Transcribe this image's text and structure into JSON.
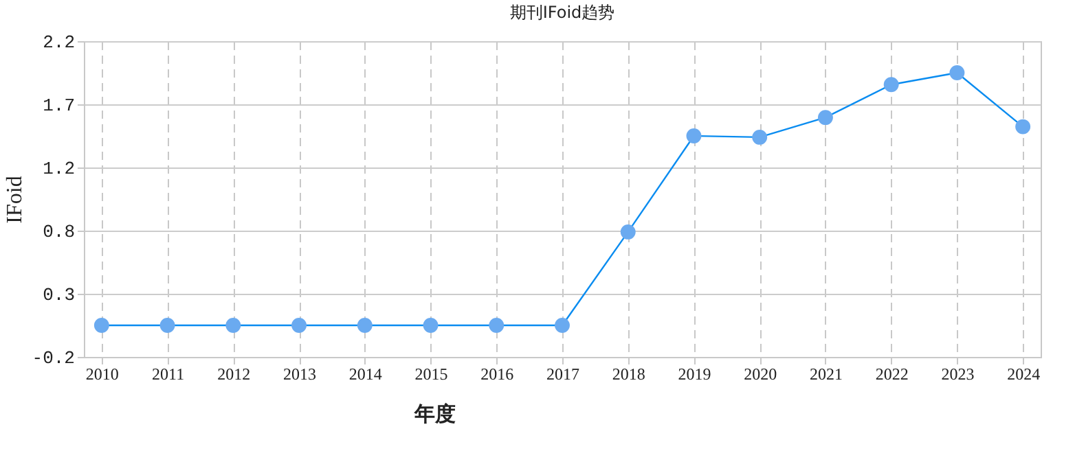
{
  "chart_data": {
    "type": "line",
    "title": "期刊IFoid趋势",
    "xlabel": "年度",
    "ylabel": "IFoid",
    "categories": [
      "2010",
      "2011",
      "2012",
      "2013",
      "2014",
      "2015",
      "2016",
      "2017",
      "2018",
      "2019",
      "2020",
      "2021",
      "2022",
      "2023",
      "2024"
    ],
    "series": [
      {
        "color": "#0a8cf0",
        "values": [
          0.04,
          0.04,
          0.04,
          0.04,
          0.04,
          0.04,
          0.04,
          0.04,
          0.75,
          1.48,
          1.47,
          1.62,
          1.87,
          1.96,
          1.55
        ]
      }
    ],
    "ylim": [
      -0.2,
      2.2
    ],
    "yticks": [
      -0.2,
      {
        "value": 0.28,
        "label": "0.3"
      },
      {
        "value": 0.76,
        "label": "0.8"
      },
      {
        "value": 1.24,
        "label": "1.2"
      },
      {
        "value": 1.72,
        "label": "1.7"
      },
      2.2
    ],
    "grid": true,
    "marker": "circle",
    "line_style": "solid"
  }
}
